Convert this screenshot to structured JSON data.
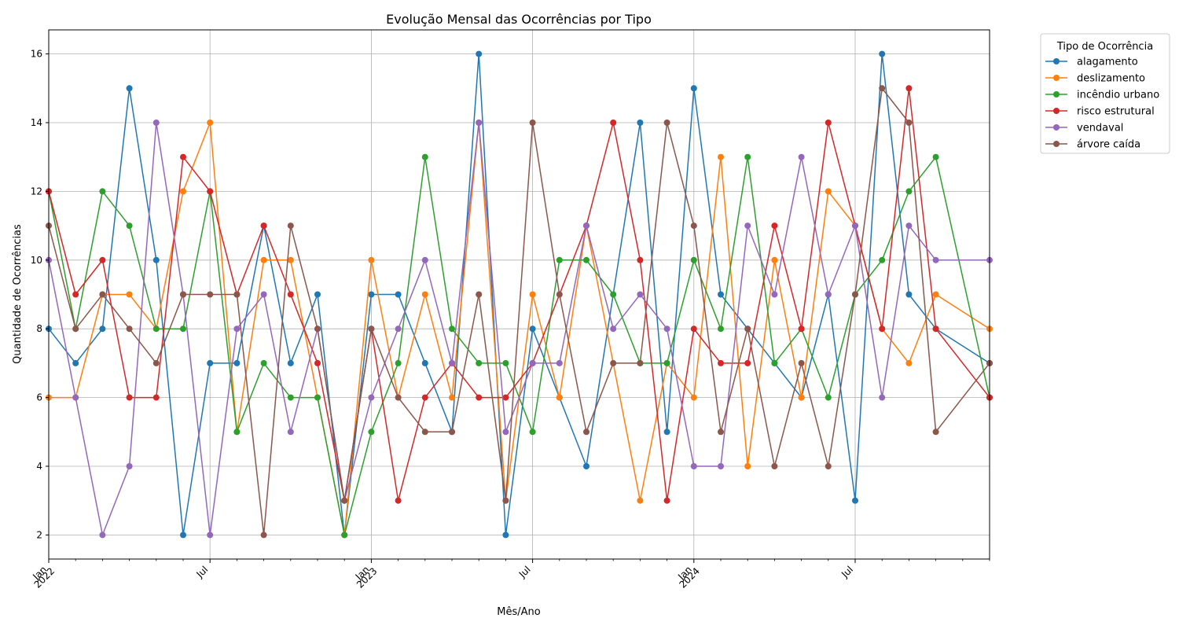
{
  "chart_data": {
    "type": "line",
    "title": "Evolução Mensal das Ocorrências por Tipo",
    "xlabel": "Mês/Ano",
    "ylabel": "Quantidade de Ocorrências",
    "x_range": [
      "2022-01",
      "2024-12"
    ],
    "ylim": [
      1.3,
      16.7
    ],
    "y_ticks": [
      2,
      4,
      6,
      8,
      10,
      12,
      14,
      16
    ],
    "x_ticks": [
      {
        "month": "2022-01",
        "label": "Jan",
        "year": "2022"
      },
      {
        "month": "2022-07",
        "label": "Jul",
        "year": ""
      },
      {
        "month": "2023-01",
        "label": "Jan",
        "year": "2023"
      },
      {
        "month": "2023-07",
        "label": "Jul",
        "year": ""
      },
      {
        "month": "2024-01",
        "label": "Jan",
        "year": "2024"
      },
      {
        "month": "2024-07",
        "label": "Jul",
        "year": ""
      }
    ],
    "grid": true,
    "legend": {
      "title": "Tipo de Ocorrência",
      "placement": "outside-top-right"
    },
    "series": [
      {
        "name": "alagamento",
        "color": "#1f77b4",
        "points": [
          [
            "2022-01",
            8
          ],
          [
            "2022-02",
            7
          ],
          [
            "2022-03",
            8
          ],
          [
            "2022-04",
            15
          ],
          [
            "2022-05",
            10
          ],
          [
            "2022-06",
            2
          ],
          [
            "2022-07",
            7
          ],
          [
            "2022-08",
            7
          ],
          [
            "2022-09",
            11
          ],
          [
            "2022-10",
            7
          ],
          [
            "2022-11",
            9
          ],
          [
            "2022-12",
            2
          ],
          [
            "2023-01",
            9
          ],
          [
            "2023-02",
            9
          ],
          [
            "2023-03",
            7
          ],
          [
            "2023-04",
            5
          ],
          [
            "2023-05",
            16
          ],
          [
            "2023-06",
            2
          ],
          [
            "2023-07",
            8
          ],
          [
            "2023-08",
            6
          ],
          [
            "2023-09",
            4
          ],
          [
            "2023-11",
            14
          ],
          [
            "2023-12",
            5
          ],
          [
            "2024-01",
            15
          ],
          [
            "2024-02",
            9
          ],
          [
            "2024-03",
            8
          ],
          [
            "2024-04",
            7
          ],
          [
            "2024-05",
            6
          ],
          [
            "2024-06",
            9
          ],
          [
            "2024-07",
            3
          ],
          [
            "2024-08",
            16
          ],
          [
            "2024-09",
            9
          ],
          [
            "2024-10",
            8
          ],
          [
            "2024-12",
            7
          ]
        ]
      },
      {
        "name": "deslizamento",
        "color": "#ff7f0e",
        "points": [
          [
            "2022-01",
            6
          ],
          [
            "2022-02",
            6
          ],
          [
            "2022-03",
            9
          ],
          [
            "2022-04",
            9
          ],
          [
            "2022-05",
            8
          ],
          [
            "2022-06",
            12
          ],
          [
            "2022-07",
            14
          ],
          [
            "2022-08",
            5
          ],
          [
            "2022-09",
            10
          ],
          [
            "2022-10",
            10
          ],
          [
            "2022-11",
            6
          ],
          [
            "2022-12",
            2
          ],
          [
            "2023-01",
            10
          ],
          [
            "2023-02",
            6
          ],
          [
            "2023-03",
            9
          ],
          [
            "2023-04",
            6
          ],
          [
            "2023-05",
            14
          ],
          [
            "2023-06",
            3
          ],
          [
            "2023-07",
            9
          ],
          [
            "2023-08",
            6
          ],
          [
            "2023-09",
            11
          ],
          [
            "2023-11",
            3
          ],
          [
            "2023-12",
            7
          ],
          [
            "2024-01",
            6
          ],
          [
            "2024-02",
            13
          ],
          [
            "2024-03",
            4
          ],
          [
            "2024-04",
            10
          ],
          [
            "2024-05",
            6
          ],
          [
            "2024-06",
            12
          ],
          [
            "2024-07",
            11
          ],
          [
            "2024-08",
            8
          ],
          [
            "2024-09",
            7
          ],
          [
            "2024-10",
            9
          ],
          [
            "2024-12",
            8
          ]
        ]
      },
      {
        "name": "incêndio urbano",
        "color": "#2ca02c",
        "points": [
          [
            "2022-01",
            12
          ],
          [
            "2022-02",
            8
          ],
          [
            "2022-03",
            12
          ],
          [
            "2022-04",
            11
          ],
          [
            "2022-05",
            8
          ],
          [
            "2022-06",
            8
          ],
          [
            "2022-07",
            12
          ],
          [
            "2022-08",
            5
          ],
          [
            "2022-09",
            7
          ],
          [
            "2022-10",
            6
          ],
          [
            "2022-11",
            6
          ],
          [
            "2022-12",
            2
          ],
          [
            "2023-01",
            5
          ],
          [
            "2023-02",
            7
          ],
          [
            "2023-03",
            13
          ],
          [
            "2023-04",
            8
          ],
          [
            "2023-05",
            7
          ],
          [
            "2023-06",
            7
          ],
          [
            "2023-07",
            5
          ],
          [
            "2023-08",
            10
          ],
          [
            "2023-09",
            10
          ],
          [
            "2023-10",
            9
          ],
          [
            "2023-11",
            7
          ],
          [
            "2023-12",
            7
          ],
          [
            "2024-01",
            10
          ],
          [
            "2024-02",
            8
          ],
          [
            "2024-03",
            13
          ],
          [
            "2024-04",
            7
          ],
          [
            "2024-05",
            8
          ],
          [
            "2024-06",
            6
          ],
          [
            "2024-07",
            9
          ],
          [
            "2024-08",
            10
          ],
          [
            "2024-09",
            12
          ],
          [
            "2024-10",
            13
          ],
          [
            "2024-12",
            6
          ]
        ]
      },
      {
        "name": "risco estrutural",
        "color": "#d62728",
        "points": [
          [
            "2022-01",
            12
          ],
          [
            "2022-02",
            9
          ],
          [
            "2022-03",
            10
          ],
          [
            "2022-04",
            6
          ],
          [
            "2022-05",
            6
          ],
          [
            "2022-06",
            13
          ],
          [
            "2022-07",
            12
          ],
          [
            "2022-08",
            9
          ],
          [
            "2022-09",
            11
          ],
          [
            "2022-10",
            9
          ],
          [
            "2022-11",
            7
          ],
          [
            "2022-12",
            3
          ],
          [
            "2023-01",
            8
          ],
          [
            "2023-02",
            3
          ],
          [
            "2023-03",
            6
          ],
          [
            "2023-04",
            7
          ],
          [
            "2023-05",
            6
          ],
          [
            "2023-06",
            6
          ],
          [
            "2023-07",
            7
          ],
          [
            "2023-09",
            11
          ],
          [
            "2023-10",
            14
          ],
          [
            "2023-11",
            10
          ],
          [
            "2023-12",
            3
          ],
          [
            "2024-01",
            8
          ],
          [
            "2024-02",
            7
          ],
          [
            "2024-03",
            7
          ],
          [
            "2024-04",
            11
          ],
          [
            "2024-05",
            8
          ],
          [
            "2024-06",
            14
          ],
          [
            "2024-07",
            11
          ],
          [
            "2024-08",
            8
          ],
          [
            "2024-09",
            15
          ],
          [
            "2024-10",
            8
          ],
          [
            "2024-12",
            6
          ]
        ]
      },
      {
        "name": "vendaval",
        "color": "#9467bd",
        "points": [
          [
            "2022-01",
            10
          ],
          [
            "2022-02",
            6
          ],
          [
            "2022-03",
            2
          ],
          [
            "2022-04",
            4
          ],
          [
            "2022-05",
            14
          ],
          [
            "2022-06",
            9
          ],
          [
            "2022-07",
            2
          ],
          [
            "2022-08",
            8
          ],
          [
            "2022-09",
            9
          ],
          [
            "2022-10",
            5
          ],
          [
            "2022-11",
            8
          ],
          [
            "2022-12",
            3
          ],
          [
            "2023-01",
            6
          ],
          [
            "2023-02",
            8
          ],
          [
            "2023-03",
            10
          ],
          [
            "2023-04",
            7
          ],
          [
            "2023-05",
            14
          ],
          [
            "2023-06",
            5
          ],
          [
            "2023-07",
            7
          ],
          [
            "2023-08",
            7
          ],
          [
            "2023-09",
            11
          ],
          [
            "2023-10",
            8
          ],
          [
            "2023-11",
            9
          ],
          [
            "2023-12",
            8
          ],
          [
            "2024-01",
            4
          ],
          [
            "2024-02",
            4
          ],
          [
            "2024-03",
            11
          ],
          [
            "2024-04",
            9
          ],
          [
            "2024-05",
            13
          ],
          [
            "2024-06",
            9
          ],
          [
            "2024-07",
            11
          ],
          [
            "2024-08",
            6
          ],
          [
            "2024-09",
            11
          ],
          [
            "2024-10",
            10
          ],
          [
            "2024-12",
            10
          ]
        ]
      },
      {
        "name": "árvore caída",
        "color": "#8c564b",
        "points": [
          [
            "2022-01",
            11
          ],
          [
            "2022-02",
            8
          ],
          [
            "2022-03",
            9
          ],
          [
            "2022-04",
            8
          ],
          [
            "2022-05",
            7
          ],
          [
            "2022-06",
            9
          ],
          [
            "2022-07",
            9
          ],
          [
            "2022-08",
            9
          ],
          [
            "2022-09",
            2
          ],
          [
            "2022-10",
            11
          ],
          [
            "2022-11",
            8
          ],
          [
            "2022-12",
            3
          ],
          [
            "2023-01",
            8
          ],
          [
            "2023-02",
            6
          ],
          [
            "2023-03",
            5
          ],
          [
            "2023-04",
            5
          ],
          [
            "2023-05",
            9
          ],
          [
            "2023-06",
            3
          ],
          [
            "2023-07",
            14
          ],
          [
            "2023-08",
            9
          ],
          [
            "2023-09",
            5
          ],
          [
            "2023-10",
            7
          ],
          [
            "2023-11",
            7
          ],
          [
            "2023-12",
            14
          ],
          [
            "2024-01",
            11
          ],
          [
            "2024-02",
            5
          ],
          [
            "2024-03",
            8
          ],
          [
            "2024-04",
            4
          ],
          [
            "2024-05",
            7
          ],
          [
            "2024-06",
            4
          ],
          [
            "2024-07",
            9
          ],
          [
            "2024-08",
            15
          ],
          [
            "2024-09",
            14
          ],
          [
            "2024-10",
            5
          ],
          [
            "2024-12",
            7
          ]
        ]
      }
    ]
  }
}
